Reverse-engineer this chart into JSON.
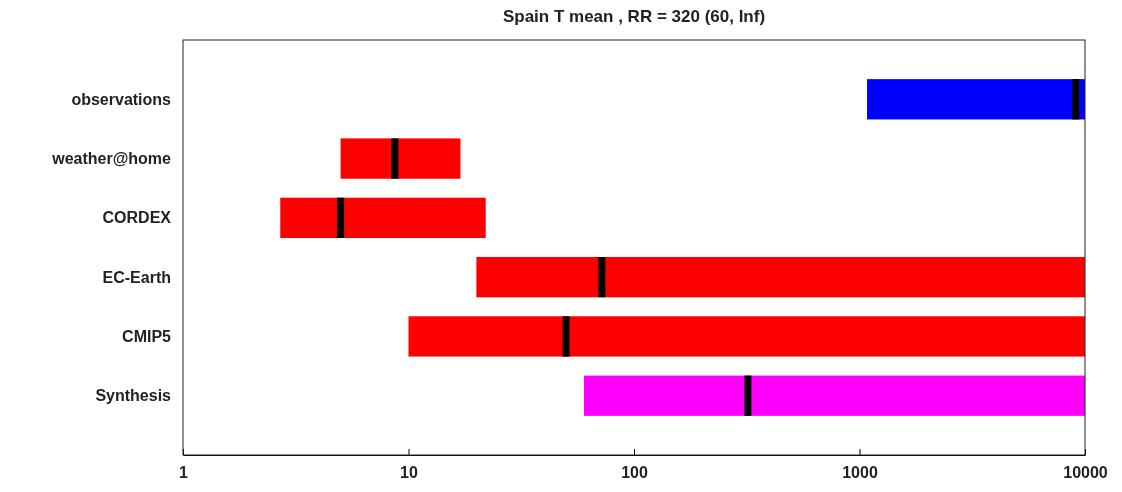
{
  "chart_data": {
    "type": "box",
    "orientation": "horizontal",
    "title": "Spain T mean , RR = 320 (60, Inf)",
    "categories": [
      "observations",
      "weather@home",
      "CORDEX",
      "EC-Earth",
      "CMIP5",
      "Synthesis"
    ],
    "log": "x",
    "xlim": [
      1,
      10000
    ],
    "xticks": [
      1,
      10,
      100,
      1000,
      10000
    ],
    "colors": [
      "#0000ff",
      "#ff0000",
      "#ff0000",
      "#ff0000",
      "#ff0000",
      "#ff00ff"
    ],
    "boxes": [
      {
        "low": 1080,
        "q1": 1080,
        "median": 9100,
        "q3": 10000,
        "high": 10000
      },
      {
        "low": 5,
        "q1": 5,
        "median": 8.7,
        "q3": 17,
        "high": 17
      },
      {
        "low": 2.7,
        "q1": 2.7,
        "median": 5,
        "q3": 22,
        "high": 22
      },
      {
        "low": 20,
        "q1": 20,
        "median": 72,
        "q3": 10000,
        "high": 10000
      },
      {
        "low": 10,
        "q1": 10,
        "median": 50,
        "q3": 10000,
        "high": 10000
      },
      {
        "low": 60,
        "q1": 60,
        "median": 320,
        "q3": 10000,
        "high": 10000
      }
    ]
  }
}
